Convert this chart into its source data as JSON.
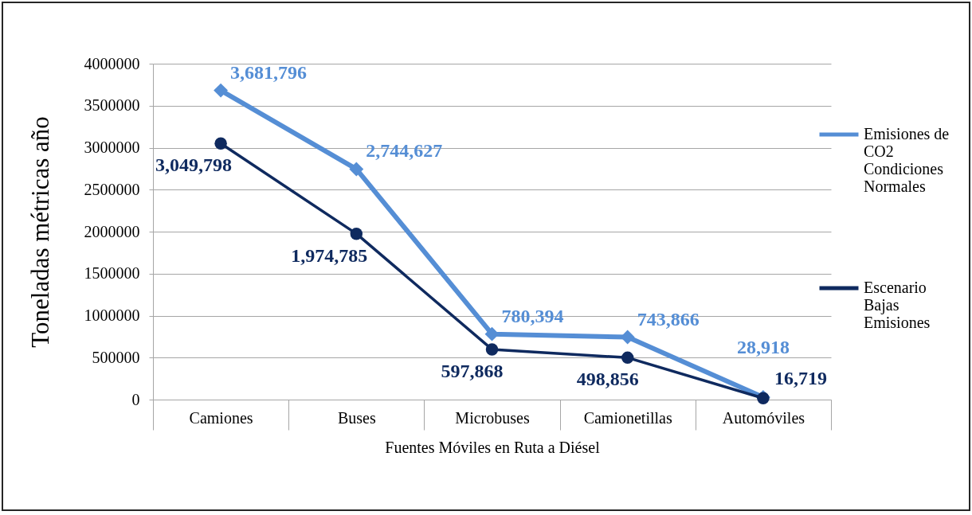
{
  "chart_data": {
    "type": "line",
    "xlabel": "Fuentes Móviles en Ruta a Diésel",
    "ylabel": "Toneladas métricas año",
    "categories": [
      "Camiones",
      "Buses",
      "Microbuses",
      "Camionetillas",
      "Automóviles"
    ],
    "series": [
      {
        "name": "Emisiones de CO2 Condiciones Normales",
        "color": "#558ed5",
        "marker": "diamond",
        "values": [
          3681796,
          2744627,
          780394,
          743866,
          28918
        ],
        "value_labels": [
          "3,681,796",
          "2,744,627",
          "780,394",
          "743,866",
          "28,918"
        ]
      },
      {
        "name": "Escenario Bajas Emisiones",
        "color": "#0f2a5f",
        "marker": "circle",
        "values": [
          3049798,
          1974785,
          597868,
          498856,
          16719
        ],
        "value_labels": [
          "3,049,798",
          "1,974,785",
          "597,868",
          "498,856",
          "16,719"
        ]
      }
    ],
    "ylim": [
      0,
      4000000
    ],
    "yticks": [
      0,
      500000,
      1000000,
      1500000,
      2000000,
      2500000,
      3000000,
      3500000,
      4000000
    ],
    "grid": "y",
    "legend": "right",
    "line_style": "solid"
  }
}
